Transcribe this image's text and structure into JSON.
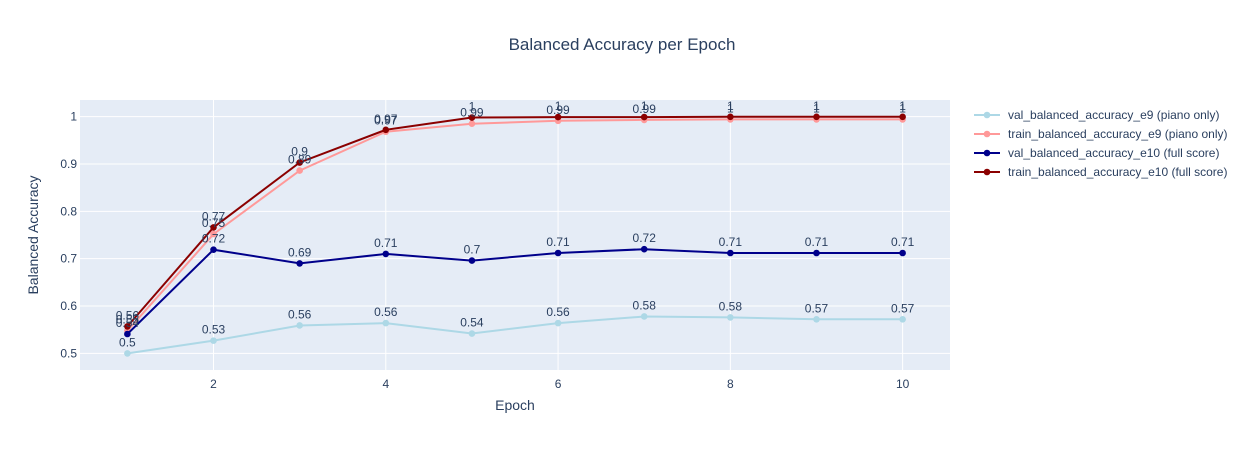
{
  "chart_data": {
    "type": "line",
    "title": "Balanced Accuracy per Epoch",
    "xlabel": "Epoch",
    "ylabel": "Balanced Accuracy",
    "x": [
      1,
      2,
      3,
      4,
      5,
      6,
      7,
      8,
      9,
      10
    ],
    "xlim": [
      0.45,
      10.55
    ],
    "ylim": [
      0.465,
      1.035
    ],
    "xticks": [
      2,
      4,
      6,
      8,
      10
    ],
    "yticks": [
      0.5,
      0.6,
      0.7,
      0.8,
      0.9,
      1
    ],
    "grid": true,
    "legend_position": "right",
    "plot_bg": "#e5ecf6",
    "series": [
      {
        "name": "val_balanced_accuracy_e9 (piano only)",
        "color": "#add8e6",
        "values": [
          0.5,
          0.527,
          0.559,
          0.564,
          0.542,
          0.564,
          0.578,
          0.576,
          0.572,
          0.572
        ],
        "labels": [
          "0.5",
          "0.53",
          "0.56",
          "0.56",
          "0.54",
          "0.56",
          "0.58",
          "0.58",
          "0.57",
          "0.57"
        ]
      },
      {
        "name": "train_balanced_accuracy_e9 (piano only)",
        "color": "#ff9999",
        "values": [
          0.548,
          0.752,
          0.886,
          0.968,
          0.985,
          0.991,
          0.993,
          0.994,
          0.994,
          0.994
        ],
        "labels": [
          "0.55",
          "0.75",
          "0.89",
          "0.97",
          "0.99",
          "0.99",
          "0.99",
          "1",
          "1",
          "1"
        ]
      },
      {
        "name": "val_balanced_accuracy_e10 (full score)",
        "color": "#00008b",
        "values": [
          0.541,
          0.719,
          0.69,
          0.71,
          0.696,
          0.712,
          0.72,
          0.712,
          0.712,
          0.712
        ],
        "labels": [
          "0.54",
          "0.72",
          "0.69",
          "0.71",
          "0.7",
          "0.71",
          "0.72",
          "0.71",
          "0.71",
          "0.71"
        ]
      },
      {
        "name": "train_balanced_accuracy_e10 (full score)",
        "color": "#8b0000",
        "values": [
          0.557,
          0.766,
          0.903,
          0.972,
          0.998,
          0.999,
          0.999,
          0.9995,
          0.9995,
          0.9995
        ],
        "labels": [
          "0.56",
          "0.77",
          "0.9",
          "0.97",
          "1",
          "1",
          "1",
          "1",
          "1",
          "1"
        ]
      }
    ]
  }
}
